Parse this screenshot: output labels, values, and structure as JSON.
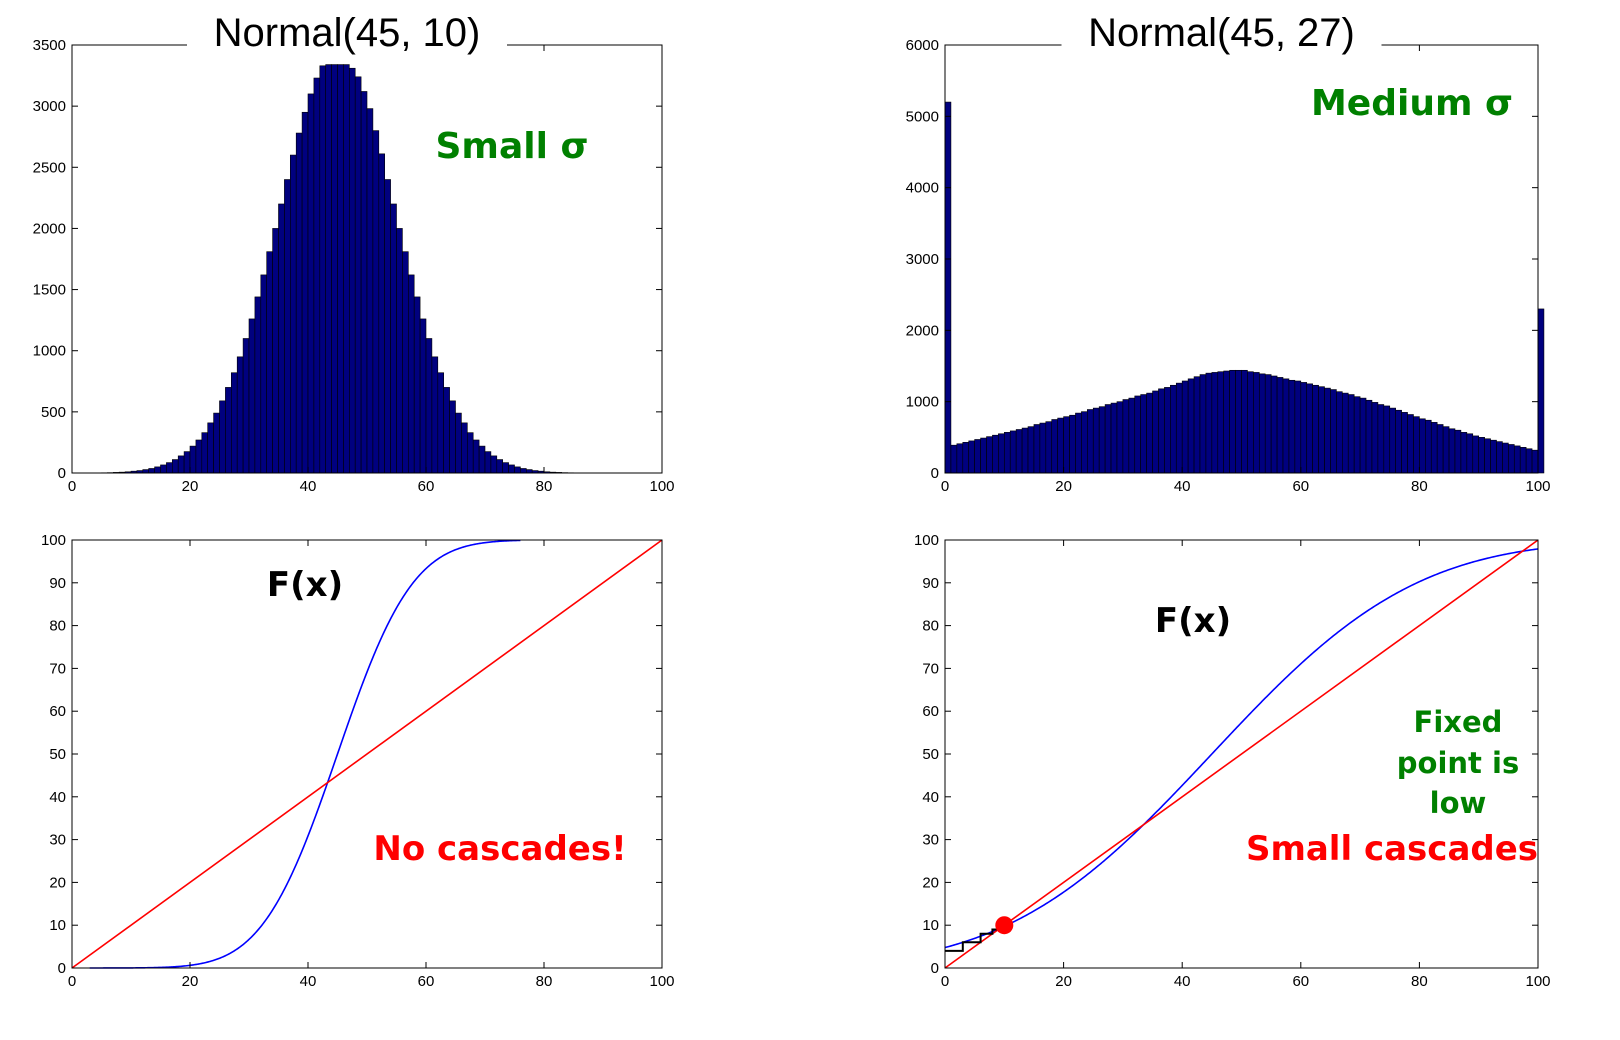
{
  "chart_data": [
    {
      "id": "hist-small",
      "type": "bar",
      "title": "Normal(45, 10)",
      "xlim": [
        0,
        100
      ],
      "ylim": [
        0,
        3500
      ],
      "xticks": [
        0,
        20,
        40,
        60,
        80,
        100
      ],
      "yticks": [
        0,
        500,
        1000,
        1500,
        2000,
        2500,
        3000,
        3500
      ],
      "bar_color": "#00007f",
      "bin_start": 0,
      "bin_width": 1,
      "values": [
        0,
        0,
        0,
        0,
        1,
        2,
        3,
        5,
        7,
        10,
        15,
        20,
        28,
        37,
        50,
        66,
        85,
        110,
        140,
        175,
        220,
        270,
        330,
        410,
        490,
        590,
        700,
        820,
        950,
        1100,
        1260,
        1440,
        1620,
        1810,
        2000,
        2200,
        2400,
        2600,
        2780,
        2950,
        3100,
        3230,
        3330,
        3340,
        3340,
        3340,
        3340,
        3310,
        3240,
        3120,
        2980,
        2800,
        2610,
        2400,
        2200,
        2000,
        1810,
        1620,
        1440,
        1260,
        1100,
        950,
        820,
        700,
        590,
        490,
        410,
        330,
        270,
        220,
        175,
        140,
        110,
        85,
        66,
        50,
        37,
        28,
        20,
        15,
        10,
        7,
        5,
        3,
        2,
        1,
        1,
        0,
        0,
        0,
        0,
        0,
        0,
        0,
        0,
        0,
        0,
        0,
        0,
        0
      ],
      "annotations": [
        {
          "text": "Small σ",
          "color": "#008000"
        }
      ]
    },
    {
      "id": "hist-medium",
      "type": "bar",
      "title": "Normal(45, 27)",
      "xlim": [
        0,
        100
      ],
      "ylim": [
        0,
        6000
      ],
      "xticks": [
        0,
        20,
        40,
        60,
        80,
        100
      ],
      "yticks": [
        0,
        1000,
        2000,
        3000,
        4000,
        5000,
        6000
      ],
      "bar_color": "#00007f",
      "bin_start": 0,
      "bin_width": 1,
      "values": [
        5200,
        390,
        410,
        430,
        450,
        470,
        490,
        510,
        530,
        550,
        570,
        590,
        610,
        630,
        650,
        680,
        700,
        720,
        750,
        770,
        790,
        810,
        840,
        860,
        890,
        910,
        930,
        960,
        980,
        1000,
        1030,
        1050,
        1080,
        1100,
        1120,
        1150,
        1180,
        1200,
        1230,
        1260,
        1290,
        1320,
        1350,
        1380,
        1400,
        1410,
        1420,
        1430,
        1440,
        1440,
        1440,
        1420,
        1410,
        1390,
        1380,
        1360,
        1340,
        1320,
        1300,
        1290,
        1270,
        1250,
        1230,
        1210,
        1190,
        1170,
        1140,
        1120,
        1100,
        1070,
        1050,
        1020,
        990,
        960,
        940,
        910,
        880,
        850,
        820,
        790,
        760,
        740,
        710,
        680,
        650,
        620,
        600,
        570,
        550,
        520,
        500,
        480,
        460,
        440,
        420,
        400,
        380,
        360,
        340,
        320,
        2300
      ],
      "annotations": [
        {
          "text": "Medium σ",
          "color": "#008000"
        }
      ]
    },
    {
      "id": "cdf-small",
      "type": "line",
      "title": "",
      "xlim": [
        0,
        100
      ],
      "ylim": [
        0,
        100
      ],
      "xticks": [
        0,
        20,
        40,
        60,
        80,
        100
      ],
      "yticks": [
        0,
        10,
        20,
        30,
        40,
        50,
        60,
        70,
        80,
        90,
        100
      ],
      "series": [
        {
          "kind": "cdf",
          "mu": 45,
          "sigma": 10,
          "x_range": [
            3,
            76
          ],
          "color": "#0000ff"
        },
        {
          "kind": "diagonal",
          "x": [
            0,
            100
          ],
          "y": [
            0,
            100
          ],
          "color": "#ff0000"
        }
      ],
      "annotations": [
        {
          "text": "F(x)",
          "color": "#000000"
        },
        {
          "text": "No cascades!",
          "color": "#ff0000"
        }
      ]
    },
    {
      "id": "cdf-medium",
      "type": "line",
      "title": "",
      "xlim": [
        0,
        100
      ],
      "ylim": [
        0,
        100
      ],
      "xticks": [
        0,
        20,
        40,
        60,
        80,
        100
      ],
      "yticks": [
        0,
        10,
        20,
        30,
        40,
        50,
        60,
        70,
        80,
        90,
        100
      ],
      "series": [
        {
          "kind": "cdf",
          "mu": 45,
          "sigma": 27,
          "x_range": [
            0,
            100
          ],
          "color": "#0000ff"
        },
        {
          "kind": "diagonal",
          "x": [
            0,
            100
          ],
          "y": [
            0,
            100
          ],
          "color": "#ff0000"
        }
      ],
      "fixed_point": {
        "x": 10,
        "y": 10,
        "color": "#ff0000"
      },
      "staircase": [
        [
          0,
          4
        ],
        [
          3,
          4
        ],
        [
          3,
          6
        ],
        [
          6,
          6
        ],
        [
          6,
          8
        ],
        [
          8,
          8
        ],
        [
          8,
          9
        ],
        [
          9,
          9
        ]
      ],
      "annotations": [
        {
          "text": "F(x)",
          "color": "#000000"
        },
        {
          "text": "Fixed",
          "color": "#008000"
        },
        {
          "text": "point is",
          "color": "#008000"
        },
        {
          "text": "low",
          "color": "#008000"
        },
        {
          "text": "Small cascades",
          "color": "#ff0000"
        }
      ]
    }
  ]
}
